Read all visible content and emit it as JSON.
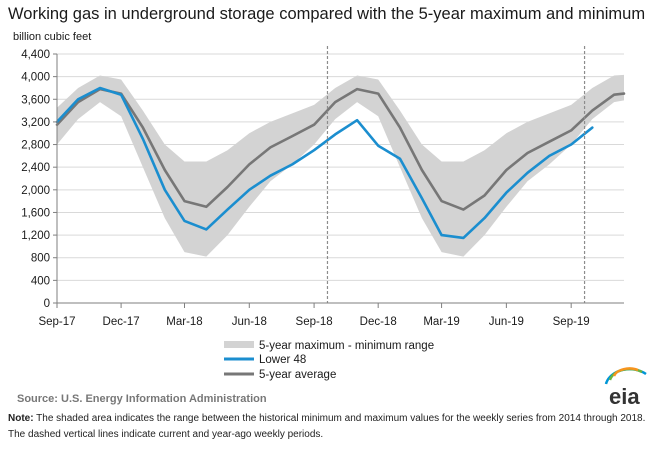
{
  "chart_data": {
    "type": "line",
    "title": "Working gas in underground  storage compared with the 5-year maximum  and minimum",
    "unit_label": "billion cubic feet",
    "ylim": [
      0,
      4400
    ],
    "y_ticks": [
      0,
      400,
      800,
      1200,
      1600,
      2000,
      2400,
      2800,
      3200,
      3600,
      4000,
      4400
    ],
    "y_tick_labels": [
      "0",
      "400",
      "800",
      "1,200",
      "1,600",
      "2,000",
      "2,400",
      "2,800",
      "3,200",
      "3,600",
      "4,000",
      "4,400"
    ],
    "x_tick_labels": [
      "Sep-17",
      "Dec-17",
      "Mar-18",
      "Jun-18",
      "Sep-18",
      "Dec-18",
      "Mar-19",
      "Jun-19",
      "Sep-19"
    ],
    "x_ticks": [
      "2017-09-01",
      "2017-12-01",
      "2018-03-01",
      "2018-06-01",
      "2018-09-01",
      "2018-12-01",
      "2019-03-01",
      "2019-06-01",
      "2019-09-01"
    ],
    "xlim": [
      "2017-09-01",
      "2019-11-15"
    ],
    "grid": "horizontal",
    "legend_position": "bottom-center",
    "vertical_markers": [
      "2018-09-20",
      "2019-09-20"
    ],
    "x": [
      "2017-09-01",
      "2017-10-01",
      "2017-11-01",
      "2017-12-01",
      "2018-01-01",
      "2018-02-01",
      "2018-03-01",
      "2018-04-01",
      "2018-05-01",
      "2018-06-01",
      "2018-07-01",
      "2018-08-01",
      "2018-09-01",
      "2018-10-01",
      "2018-11-01",
      "2018-12-01",
      "2019-01-01",
      "2019-02-01",
      "2019-03-01",
      "2019-04-01",
      "2019-05-01",
      "2019-06-01",
      "2019-07-01",
      "2019-08-01",
      "2019-09-01",
      "2019-10-01",
      "2019-11-01",
      "2019-11-15"
    ],
    "series": [
      {
        "name": "5-year maximum - minimum range",
        "kind": "band",
        "color": "#d3d3d3",
        "upper": [
          3450,
          3800,
          4020,
          3950,
          3400,
          2800,
          2500,
          2500,
          2700,
          3000,
          3200,
          3350,
          3500,
          3800,
          4020,
          3950,
          3400,
          2800,
          2500,
          2500,
          2700,
          3000,
          3200,
          3350,
          3500,
          3800,
          4020,
          4030
        ],
        "lower": [
          2800,
          3250,
          3550,
          3300,
          2400,
          1500,
          900,
          820,
          1200,
          1700,
          2150,
          2450,
          2800,
          3250,
          3550,
          3300,
          2400,
          1500,
          900,
          820,
          1200,
          1700,
          2150,
          2450,
          2800,
          3250,
          3550,
          3580
        ]
      },
      {
        "name": "Lower 48",
        "kind": "line",
        "color": "#1b8ecf",
        "values": [
          3200,
          3600,
          3800,
          3680,
          2900,
          2000,
          1450,
          1300,
          1650,
          2000,
          2250,
          2450,
          2700,
          2980,
          3230,
          2780,
          2550,
          1850,
          1200,
          1150,
          1500,
          1950,
          2300,
          2600,
          2800,
          3100,
          null,
          null
        ]
      },
      {
        "name": "5-year average",
        "kind": "line",
        "color": "#777777",
        "values": [
          3150,
          3550,
          3780,
          3700,
          3100,
          2350,
          1800,
          1700,
          2050,
          2450,
          2750,
          2950,
          3150,
          3550,
          3780,
          3700,
          3100,
          2350,
          1800,
          1650,
          1900,
          2350,
          2650,
          2850,
          3050,
          3400,
          3680,
          3700
        ]
      }
    ]
  },
  "source": "Source:  U.S. Energy Information Administration",
  "footnote": {
    "label": "Note:",
    "text": " The shaded area indicates the range between the historical minimum and maximum values for the weekly series from 2014 through 2018. The dashed vertical lines indicate current and year-ago weekly periods."
  },
  "logo": {
    "text": "eia",
    "colors": [
      "#0096d6",
      "#6cb33f",
      "#f7941d"
    ]
  }
}
